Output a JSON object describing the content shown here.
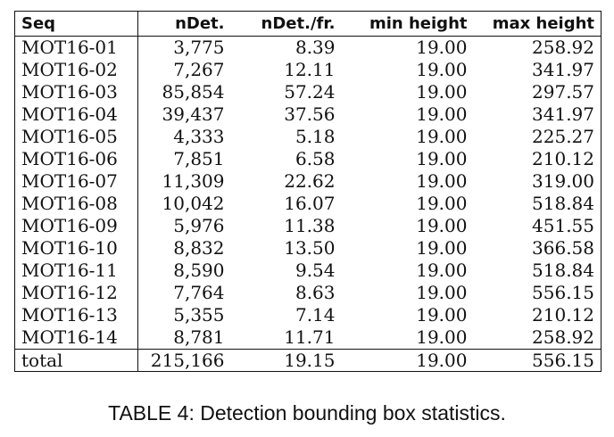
{
  "table": {
    "headers": [
      "Seq",
      "nDet.",
      "nDet./fr.",
      "min height",
      "max height"
    ],
    "rows": [
      [
        "MOT16-01",
        "3,775",
        "8.39",
        "19.00",
        "258.92"
      ],
      [
        "MOT16-02",
        "7,267",
        "12.11",
        "19.00",
        "341.97"
      ],
      [
        "MOT16-03",
        "85,854",
        "57.24",
        "19.00",
        "297.57"
      ],
      [
        "MOT16-04",
        "39,437",
        "37.56",
        "19.00",
        "341.97"
      ],
      [
        "MOT16-05",
        "4,333",
        "5.18",
        "19.00",
        "225.27"
      ],
      [
        "MOT16-06",
        "7,851",
        "6.58",
        "19.00",
        "210.12"
      ],
      [
        "MOT16-07",
        "11,309",
        "22.62",
        "19.00",
        "319.00"
      ],
      [
        "MOT16-08",
        "10,042",
        "16.07",
        "19.00",
        "518.84"
      ],
      [
        "MOT16-09",
        "5,976",
        "11.38",
        "19.00",
        "451.55"
      ],
      [
        "MOT16-10",
        "8,832",
        "13.50",
        "19.00",
        "366.58"
      ],
      [
        "MOT16-11",
        "8,590",
        "9.54",
        "19.00",
        "518.84"
      ],
      [
        "MOT16-12",
        "7,764",
        "8.63",
        "19.00",
        "556.15"
      ],
      [
        "MOT16-13",
        "5,355",
        "7.14",
        "19.00",
        "210.12"
      ],
      [
        "MOT16-14",
        "8,781",
        "11.71",
        "19.00",
        "258.92"
      ]
    ],
    "total": [
      "total",
      "215,166",
      "19.15",
      "19.00",
      "556.15"
    ]
  },
  "caption": "TABLE 4: Detection bounding box statistics."
}
